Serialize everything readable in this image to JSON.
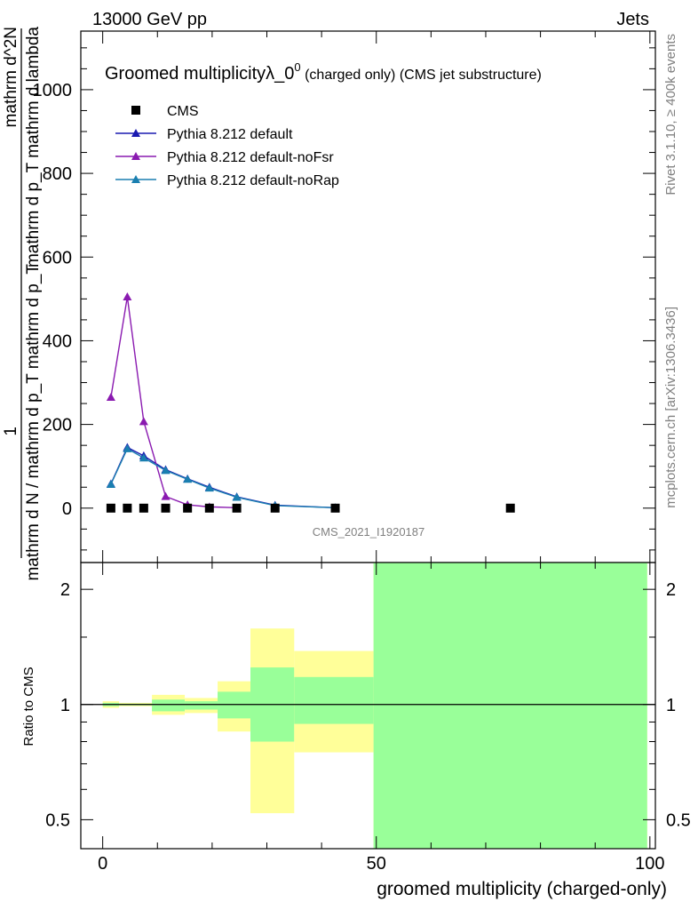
{
  "header": {
    "left": "13000 GeV pp",
    "right": "Jets"
  },
  "side_labels": {
    "rivet": "Rivet 3.1.10, ≥ 400k events",
    "mcplots": "mcplots.cern.ch [arXiv:1306.3436]"
  },
  "colors": {
    "cms": "#000000",
    "default": "#1a1ab0",
    "noFsr": "#8a1ab0",
    "noRap": "#1a7fb0",
    "band_mc": "#99ff99",
    "band_exp": "#ffff99"
  },
  "chart_data": [
    {
      "type": "line",
      "title_main": "Groomed multiplicityλ_0",
      "title_sup": "0",
      "title_tail": " (charged only) (CMS jet substructure)",
      "ylabel_lines": [
        "mathrm d^2N",
        "mathrm d p_T mathrm d lambda",
        "1",
        "mathrm d N / mathrm d p_T mathrm d p_T"
      ],
      "watermark": "CMS_2021_I1920187",
      "xlim": [
        -4,
        101
      ],
      "ylim": [
        -130,
        1140
      ],
      "yticks": [
        0,
        200,
        400,
        600,
        800,
        1000
      ],
      "ytick_labels": [
        "0",
        "200",
        "400",
        "600",
        "800",
        "1000"
      ],
      "legend_position": "top-left",
      "series": [
        {
          "name": "CMS",
          "key": "cms",
          "marker": "square",
          "x": [
            1.5,
            4.5,
            7.5,
            11.5,
            15.5,
            19.5,
            24.5,
            31.5,
            42.5,
            74.5
          ],
          "y": [
            0,
            0,
            0,
            0,
            0,
            0,
            0,
            0,
            0,
            0
          ]
        },
        {
          "name": "Pythia 8.212 default",
          "key": "default",
          "marker": "triangle",
          "x": [
            1.5,
            4.5,
            7.5,
            11.5,
            15.5,
            19.5,
            24.5,
            31.5,
            42.5
          ],
          "y": [
            58,
            145,
            125,
            92,
            70,
            50,
            27,
            7,
            1
          ]
        },
        {
          "name": "Pythia 8.212 default-noFsr",
          "key": "noFsr",
          "marker": "triangle",
          "x": [
            1.5,
            4.5,
            7.5,
            11.5,
            15.5,
            19.5,
            24.5
          ],
          "y": [
            265,
            505,
            207,
            28,
            8,
            3,
            1
          ]
        },
        {
          "name": "Pythia 8.212 default-noRap",
          "key": "noRap",
          "marker": "triangle",
          "x": [
            1.5,
            4.5,
            7.5,
            11.5,
            15.5,
            19.5,
            24.5,
            31.5,
            42.5
          ],
          "y": [
            57,
            142,
            120,
            90,
            69,
            48,
            26,
            6,
            1
          ]
        }
      ]
    },
    {
      "type": "area",
      "ylabel": "Ratio to CMS",
      "xlabel": "groomed multiplicity (charged-only)",
      "xlim": [
        -4,
        101
      ],
      "ylim": [
        0.42,
        2.35
      ],
      "xticks": [
        0,
        50,
        100
      ],
      "xtick_labels": [
        "0",
        "50",
        "100"
      ],
      "yticks": [
        0.5,
        1,
        2
      ],
      "ytick_labels": [
        "0.5",
        "1",
        "2"
      ],
      "reference_line": 1,
      "bins": [
        {
          "x0": 0,
          "x1": 3,
          "mc": [
            0.99,
            1.01
          ],
          "exp": [
            0.98,
            1.02
          ]
        },
        {
          "x0": 3,
          "x1": 9,
          "mc": [
            0.995,
            1.005
          ],
          "exp": [
            0.99,
            1.01
          ]
        },
        {
          "x0": 9,
          "x1": 15,
          "mc": [
            0.96,
            1.03
          ],
          "exp": [
            0.94,
            1.06
          ]
        },
        {
          "x0": 15,
          "x1": 21,
          "mc": [
            0.97,
            1.02
          ],
          "exp": [
            0.95,
            1.04
          ]
        },
        {
          "x0": 21,
          "x1": 27,
          "mc": [
            0.92,
            1.08
          ],
          "exp": [
            0.85,
            1.15
          ]
        },
        {
          "x0": 27,
          "x1": 35,
          "mc": [
            0.8,
            1.25
          ],
          "exp": [
            0.52,
            1.58
          ]
        },
        {
          "x0": 35,
          "x1": 49.5,
          "mc": [
            0.89,
            1.18
          ],
          "exp": [
            0.75,
            1.38
          ]
        },
        {
          "x0": 49.5,
          "x1": 99.5,
          "mc": [
            0.42,
            2.35
          ],
          "exp": [
            0.42,
            2.35
          ]
        }
      ]
    }
  ]
}
